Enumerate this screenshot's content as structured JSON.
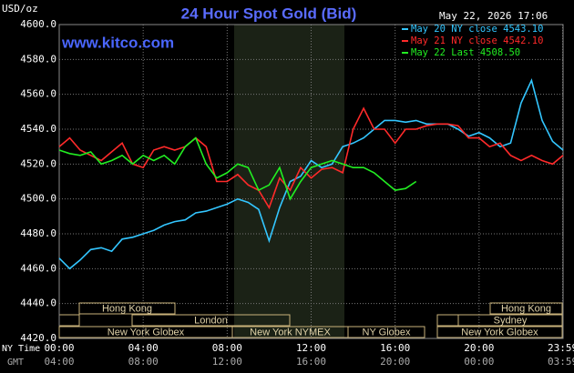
{
  "chart_data": {
    "type": "line",
    "title": "24 Hour Spot Gold (Bid)",
    "y_label": "USD/oz",
    "timestamp": "May 22, 2026 17:06",
    "site": "www.kitco.com",
    "x_label": "NY Time",
    "x2_label": "GMT",
    "x": [
      0,
      0.5,
      1,
      1.5,
      2,
      2.5,
      3,
      3.5,
      4,
      4.5,
      5,
      5.5,
      6,
      6.5,
      7,
      7.5,
      8,
      8.5,
      9,
      9.5,
      10,
      10.5,
      11,
      11.5,
      12,
      12.5,
      13,
      13.5,
      14,
      14.5,
      15,
      15.5,
      16,
      16.5,
      17,
      17.5,
      18,
      18.5,
      19,
      19.5,
      20,
      20.5,
      21,
      21.5,
      22,
      22.5,
      23,
      23.5,
      24
    ],
    "series": [
      {
        "name": "May 20 NY close 4543.10",
        "color": "#33c6ff",
        "values": [
          4466,
          4460,
          4465,
          4471,
          4472,
          4470,
          4477,
          4478,
          4480,
          4482,
          4485,
          4487,
          4488,
          4492,
          4493,
          4495,
          4497,
          4500,
          4498,
          4494,
          4476,
          4495,
          4510,
          4513,
          4522,
          4518,
          4520,
          4530,
          4532,
          4535,
          4540,
          4545,
          4545,
          4544,
          4545,
          4543,
          4543,
          4543,
          4540,
          4536,
          4538,
          4535,
          4530,
          4532,
          4555,
          4568,
          4545,
          4533,
          4528
        ]
      },
      {
        "name": "May 21 NY close 4542.10",
        "color": "#ff2a2a",
        "values": [
          4530,
          4535,
          4528,
          4525,
          4522,
          4527,
          4532,
          4520,
          4518,
          4528,
          4530,
          4528,
          4530,
          4535,
          4530,
          4510,
          4510,
          4514,
          4508,
          4505,
          4495,
          4512,
          4505,
          4518,
          4512,
          4517,
          4518,
          4515,
          4540,
          4552,
          4540,
          4540,
          4532,
          4540,
          4540,
          4542,
          4543,
          4543,
          4542,
          4535,
          4535,
          4530,
          4532,
          4525,
          4522,
          4525,
          4522,
          4520,
          4525
        ]
      },
      {
        "name": "May 22 Last 4508.50",
        "color": "#22ee22",
        "values": [
          4528,
          4526,
          4525,
          4527,
          4520,
          4522,
          4525,
          4520,
          4525,
          4522,
          4525,
          4520,
          4530,
          4535,
          4520,
          4512,
          4515,
          4520,
          4518,
          4505,
          4508,
          4518,
          4500,
          4510,
          4518,
          4520,
          4522,
          4520,
          4518,
          4518,
          4515,
          4510,
          4505,
          4506,
          4510,
          null,
          null,
          null,
          null,
          null,
          null,
          null,
          null,
          null,
          null,
          null,
          null,
          null,
          null
        ]
      }
    ],
    "xlim": [
      0,
      24
    ],
    "xticks": [
      {
        "value": 0,
        "label": "00:00"
      },
      {
        "value": 4,
        "label": "04:00"
      },
      {
        "value": 8,
        "label": "08:00"
      },
      {
        "value": 12,
        "label": "12:00"
      },
      {
        "value": 16,
        "label": "16:00"
      },
      {
        "value": 20,
        "label": "20:00"
      },
      {
        "value": 23.98,
        "label": "23:59"
      }
    ],
    "x2ticks": [
      {
        "value": 0,
        "label": "04:00"
      },
      {
        "value": 4,
        "label": "08:00"
      },
      {
        "value": 8,
        "label": "12:00"
      },
      {
        "value": 12,
        "label": "16:00"
      },
      {
        "value": 16,
        "label": "20:00"
      },
      {
        "value": 20,
        "label": "00:00"
      },
      {
        "value": 23.98,
        "label": "03:59"
      }
    ],
    "ylim": [
      4420,
      4600
    ],
    "yticks": [
      {
        "value": 4420,
        "label": "4420.0"
      },
      {
        "value": 4440,
        "label": "4440.0"
      },
      {
        "value": 4460,
        "label": "4460.0"
      },
      {
        "value": 4480,
        "label": "4480.0"
      },
      {
        "value": 4500,
        "label": "4500.0"
      },
      {
        "value": 4520,
        "label": "4520.0"
      },
      {
        "value": 4540,
        "label": "4540.0"
      },
      {
        "value": 4560,
        "label": "4560.0"
      },
      {
        "value": 4580,
        "label": "4580.0"
      },
      {
        "value": 4600,
        "label": "4600.0"
      }
    ],
    "grid": true,
    "sessions": [
      "Hong Kong",
      "London",
      "New York Globex",
      "New York NYMEX",
      "NY Globex",
      "New York Globex",
      "Sydney",
      "Hong Kong"
    ]
  }
}
